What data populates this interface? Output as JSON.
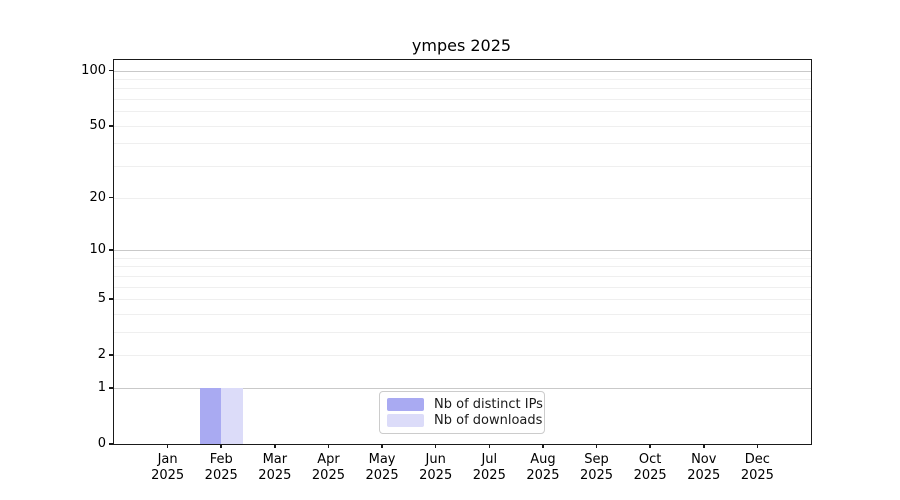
{
  "title": "ympes 2025",
  "colors": {
    "bar_distinct_ips": "#a9aaf2",
    "bar_downloads": "#dcdcf9",
    "grid_major": "#c9c9c9",
    "grid_minor": "#efefef",
    "spine": "#1a1a1a",
    "legend_border": "#cccccc",
    "background": "#ffffff"
  },
  "legend": {
    "items": [
      {
        "label": "Nb of distinct IPs",
        "color": "#a9aaf2"
      },
      {
        "label": "Nb of downloads",
        "color": "#dcdcf9"
      }
    ]
  },
  "chart_data": {
    "type": "bar",
    "title": "ympes 2025",
    "categories": [
      "Jan 2025",
      "Feb 2025",
      "Mar 2025",
      "Apr 2025",
      "May 2025",
      "Jun 2025",
      "Jul 2025",
      "Aug 2025",
      "Sep 2025",
      "Oct 2025",
      "Nov 2025",
      "Dec 2025"
    ],
    "series": [
      {
        "name": "Nb of distinct IPs",
        "color": "#a9aaf2",
        "values": [
          0,
          1,
          0,
          0,
          0,
          0,
          0,
          0,
          0,
          0,
          0,
          0
        ]
      },
      {
        "name": "Nb of downloads",
        "color": "#dcdcf9",
        "values": [
          0,
          1,
          0,
          0,
          0,
          0,
          0,
          0,
          0,
          0,
          0,
          0
        ]
      }
    ],
    "xlabel": "",
    "ylabel": "",
    "yscale": "log1p",
    "ylim": [
      0,
      114
    ],
    "y_ticks": [
      100,
      50,
      20,
      10,
      5,
      2,
      1,
      0
    ],
    "y_major_gridlines": [
      1,
      10,
      100
    ],
    "y_minor_gridlines": [
      2,
      3,
      4,
      5,
      6,
      7,
      8,
      9,
      20,
      30,
      40,
      50,
      60,
      70,
      80,
      90
    ],
    "grid": true,
    "legend_position": "lower center"
  }
}
